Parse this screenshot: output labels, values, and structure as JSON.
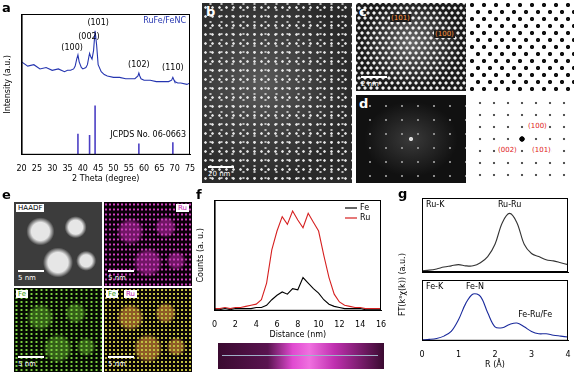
{
  "chart_data": [
    {
      "panel": "a",
      "type": "line",
      "title": "RuFe/FeNC",
      "color": "#2535b0",
      "x": [
        20,
        22,
        24,
        26,
        28,
        30,
        32,
        34,
        35,
        36,
        37,
        37.5,
        38,
        38.4,
        38.8,
        39.5,
        40,
        41,
        41.5,
        42,
        42.2,
        42.5,
        43,
        43.5,
        44,
        44.5,
        45,
        46,
        47,
        48,
        50,
        52,
        54,
        56,
        57,
        58,
        58.3,
        58.6,
        59,
        60,
        62,
        64,
        66,
        68,
        69,
        69.4,
        69.8,
        70,
        71,
        72,
        74,
        75
      ],
      "values": [
        66,
        63,
        64,
        61,
        62,
        60,
        61,
        59,
        60,
        60,
        61,
        63,
        68,
        71,
        66,
        62,
        61,
        62,
        64,
        70,
        72,
        70,
        68,
        74,
        88,
        78,
        64,
        59,
        57,
        56,
        55,
        55,
        54,
        54,
        54,
        56,
        58,
        56,
        54,
        53,
        53,
        52,
        52,
        52,
        53,
        55,
        53,
        52,
        51,
        51,
        50,
        51
      ],
      "xlim": [
        20,
        75
      ],
      "xticks": [
        20,
        25,
        30,
        35,
        40,
        45,
        50,
        55,
        60,
        65,
        70,
        75
      ],
      "ylim": [
        0,
        100
      ],
      "xlabel": "2 Theta (degree)",
      "ylabel": "Intensity (a.u.)",
      "tick_labels": "x",
      "grid": false,
      "reference": {
        "name": "JCPDS No. 06-0663",
        "x": [
          38.4,
          42.2,
          44.0,
          58.3,
          69.4
        ],
        "values": [
          15,
          14,
          35,
          8,
          9
        ],
        "color": "#4b3fc4"
      },
      "annotations": [
        {
          "text": "(100)",
          "x": 36.5,
          "y": 76
        },
        {
          "text": "(002)",
          "x": 42,
          "y": 84
        },
        {
          "text": "(101)",
          "x": 45,
          "y": 94
        },
        {
          "text": "(102)",
          "x": 58.3,
          "y": 64
        },
        {
          "text": "(110)",
          "x": 69.4,
          "y": 62
        }
      ]
    },
    {
      "panel": "f",
      "type": "line",
      "x": [
        0,
        0.5,
        1,
        1.5,
        2,
        2.5,
        3,
        3.5,
        4,
        4.5,
        5,
        5.5,
        6,
        6.5,
        7,
        7.5,
        8,
        8.5,
        9,
        9.5,
        10,
        10.5,
        11,
        11.5,
        12,
        12.5,
        13,
        13.5,
        14,
        14.5,
        15,
        15.5,
        16
      ],
      "series": [
        {
          "name": "Fe",
          "color": "#000000",
          "values": [
            0.01,
            0.01,
            0.02,
            0.01,
            0.02,
            0.02,
            0.02,
            0.02,
            0.03,
            0.03,
            0.05,
            0.1,
            0.14,
            0.17,
            0.15,
            0.2,
            0.19,
            0.3,
            0.25,
            0.2,
            0.16,
            0.1,
            0.06,
            0.04,
            0.03,
            0.02,
            0.02,
            0.02,
            0.02,
            0.01,
            0.01,
            0.01,
            0.01
          ]
        },
        {
          "name": "Ru",
          "color": "#d62020",
          "values": [
            0.02,
            0.02,
            0.03,
            0.02,
            0.03,
            0.03,
            0.04,
            0.05,
            0.06,
            0.1,
            0.25,
            0.55,
            0.72,
            0.85,
            0.78,
            0.9,
            0.82,
            0.75,
            0.88,
            0.8,
            0.72,
            0.5,
            0.3,
            0.15,
            0.08,
            0.05,
            0.04,
            0.03,
            0.03,
            0.02,
            0.02,
            0.02,
            0.02
          ]
        }
      ],
      "xlim": [
        0,
        16
      ],
      "xticks": [
        0,
        2,
        4,
        6,
        8,
        10,
        12,
        14,
        16
      ],
      "ylim": [
        0,
        1
      ],
      "xlabel": "Distance (nm)",
      "ylabel": "Counts (a. u.)",
      "tick_labels": "x",
      "grid": false,
      "legend": "upper right"
    },
    {
      "panel": "g",
      "type": "line",
      "title": "Ru-K",
      "color": "#333333",
      "x": [
        0,
        0.2,
        0.4,
        0.6,
        0.8,
        1.0,
        1.2,
        1.4,
        1.6,
        1.8,
        2.0,
        2.2,
        2.4,
        2.6,
        2.8,
        3.0,
        3.2,
        3.4,
        3.6,
        3.8,
        4.0
      ],
      "values": [
        0.02,
        0.03,
        0.05,
        0.08,
        0.1,
        0.12,
        0.1,
        0.1,
        0.15,
        0.25,
        0.45,
        0.8,
        0.95,
        0.8,
        0.45,
        0.3,
        0.25,
        0.2,
        0.18,
        0.15,
        0.12
      ],
      "xlim": [
        0,
        4
      ],
      "ylim": [
        0,
        1.2
      ],
      "ylabel": "FT(k³χ(k)) (a.u.)",
      "tick_labels": false,
      "grid": false,
      "annotations": [
        {
          "text": "Ru-Ru",
          "x": 2.4,
          "y": 1.08
        }
      ]
    },
    {
      "panel": "",
      "type": "line",
      "title": "Fe-K",
      "color": "#1a2a9c",
      "x": [
        0,
        0.2,
        0.4,
        0.6,
        0.8,
        1.0,
        1.2,
        1.4,
        1.6,
        1.8,
        2.0,
        2.2,
        2.4,
        2.6,
        2.8,
        3.0,
        3.2,
        3.4,
        3.6,
        3.8,
        4.0
      ],
      "values": [
        0.02,
        0.03,
        0.05,
        0.1,
        0.2,
        0.45,
        0.8,
        1.0,
        0.95,
        0.6,
        0.3,
        0.28,
        0.35,
        0.38,
        0.3,
        0.2,
        0.15,
        0.15,
        0.12,
        0.1,
        0.08
      ],
      "xlim": [
        0,
        4
      ],
      "xticks": [
        0,
        1,
        2,
        3,
        4
      ],
      "ylim": [
        0,
        1.3
      ],
      "xlabel": "R (Å)",
      "tick_labels": "x",
      "grid": false,
      "annotations": [
        {
          "text": "Fe-N",
          "x": 1.45,
          "y": 1.16
        },
        {
          "text": "Fe-Ru/Fe",
          "x": 3.1,
          "y": 0.55
        }
      ]
    }
  ],
  "images": {
    "b": {
      "panel": "b",
      "scale_bar": "20 nm"
    },
    "c": {
      "panel": "c",
      "scale_bar": "2 nm",
      "labels": [
        "(101)",
        "(100)"
      ]
    },
    "d": {
      "panel": "d",
      "labels": [
        "(100)",
        "(101)",
        "(002)"
      ]
    },
    "e": {
      "panel": "e",
      "scale_bar": "5 nm",
      "channels": [
        "HAADF",
        "Ru",
        "Fe"
      ]
    }
  }
}
